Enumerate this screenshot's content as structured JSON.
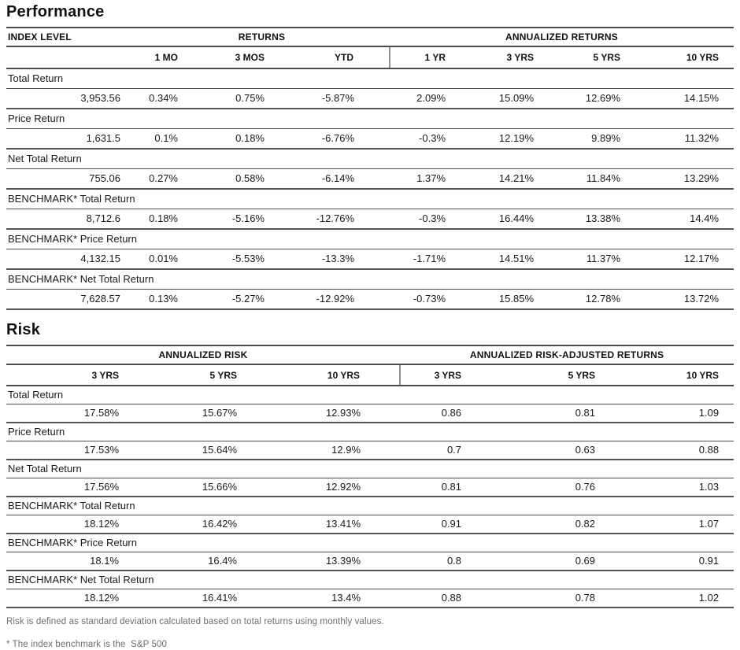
{
  "performance": {
    "title": "Performance",
    "group_headers": {
      "index_level": "INDEX LEVEL",
      "returns": "RETURNS",
      "annualized_returns": "ANNUALIZED RETURNS"
    },
    "columns": [
      "1 MO",
      "3 MOS",
      "YTD",
      "1 YR",
      "3 YRS",
      "5 YRS",
      "10 YRS"
    ],
    "rows": [
      {
        "label": "Total Return",
        "values": [
          "3,953.56",
          "0.34%",
          "0.75%",
          "-5.87%",
          "2.09%",
          "15.09%",
          "12.69%",
          "14.15%"
        ]
      },
      {
        "label": "Price Return",
        "values": [
          "1,631.5",
          "0.1%",
          "0.18%",
          "-6.76%",
          "-0.3%",
          "12.19%",
          "9.89%",
          "11.32%"
        ]
      },
      {
        "label": "Net Total Return",
        "values": [
          "755.06",
          "0.27%",
          "0.58%",
          "-6.14%",
          "1.37%",
          "14.21%",
          "11.84%",
          "13.29%"
        ]
      },
      {
        "label": "BENCHMARK* Total Return",
        "values": [
          "8,712.6",
          "0.18%",
          "-5.16%",
          "-12.76%",
          "-0.3%",
          "16.44%",
          "13.38%",
          "14.4%"
        ]
      },
      {
        "label": "BENCHMARK* Price Return",
        "values": [
          "4,132.15",
          "0.01%",
          "-5.53%",
          "-13.3%",
          "-1.71%",
          "14.51%",
          "11.37%",
          "12.17%"
        ]
      },
      {
        "label": "BENCHMARK* Net Total Return",
        "values": [
          "7,628.57",
          "0.13%",
          "-5.27%",
          "-12.92%",
          "-0.73%",
          "15.85%",
          "12.78%",
          "13.72%"
        ]
      }
    ]
  },
  "risk": {
    "title": "Risk",
    "group_headers": {
      "annualized_risk": "ANNUALIZED RISK",
      "risk_adjusted": "ANNUALIZED RISK-ADJUSTED RETURNS"
    },
    "columns": [
      "3 YRS",
      "5 YRS",
      "10 YRS",
      "3 YRS",
      "5 YRS",
      "10 YRS"
    ],
    "rows": [
      {
        "label": "Total Return",
        "values": [
          "17.58%",
          "15.67%",
          "12.93%",
          "0.86",
          "0.81",
          "1.09"
        ]
      },
      {
        "label": "Price Return",
        "values": [
          "17.53%",
          "15.64%",
          "12.9%",
          "0.7",
          "0.63",
          "0.88"
        ]
      },
      {
        "label": "Net Total Return",
        "values": [
          "17.56%",
          "15.66%",
          "12.92%",
          "0.81",
          "0.76",
          "1.03"
        ]
      },
      {
        "label": "BENCHMARK* Total Return",
        "values": [
          "18.12%",
          "16.42%",
          "13.41%",
          "0.91",
          "0.82",
          "1.07"
        ]
      },
      {
        "label": "BENCHMARK* Price Return",
        "values": [
          "18.1%",
          "16.4%",
          "13.39%",
          "0.8",
          "0.69",
          "0.91"
        ]
      },
      {
        "label": "BENCHMARK* Net Total Return",
        "values": [
          "18.12%",
          "16.41%",
          "13.4%",
          "0.88",
          "0.78",
          "1.02"
        ]
      }
    ]
  },
  "footnotes": {
    "risk_definition": "Risk is defined as standard deviation calculated based on total returns using monthly values.",
    "benchmark": "* The index benchmark is the  S&P 500"
  }
}
